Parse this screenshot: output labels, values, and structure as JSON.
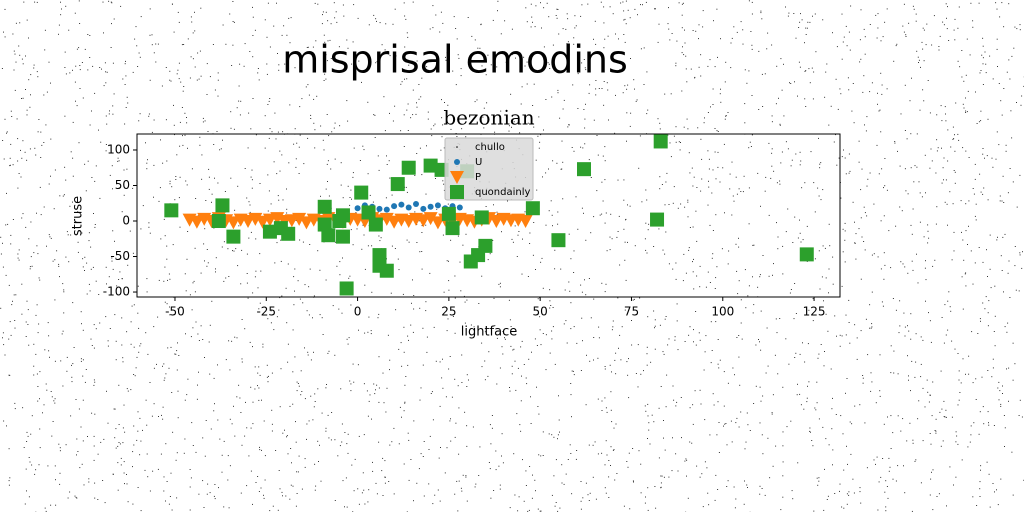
{
  "chart_data": {
    "type": "scatter",
    "title": "misprisal emodins",
    "subtitle": "bezonian",
    "x_label": "lightface",
    "y_label": "struse",
    "xlim": [
      -60.4,
      132.1
    ],
    "ylim": [
      -107,
      122.5
    ],
    "xticks": [
      -50,
      -25,
      0,
      25,
      50,
      75,
      100,
      125
    ],
    "yticks": [
      -100,
      -50,
      0,
      50,
      100
    ],
    "legend": "upper center",
    "series": [
      {
        "name": "chullo",
        "color": "#000000",
        "marker": "point",
        "x": [
          -20,
          -5,
          10,
          25,
          40
        ],
        "values": [
          5,
          10,
          -3,
          8,
          2
        ]
      },
      {
        "name": "U",
        "color": "#1f77b4",
        "marker": "circle",
        "x": [
          0,
          2,
          4,
          6,
          8,
          10,
          12,
          14,
          16,
          18,
          20,
          22,
          24,
          26,
          28
        ],
        "values": [
          18,
          22,
          20,
          17,
          16,
          21,
          23,
          19,
          24,
          17,
          20,
          22,
          18,
          21,
          19
        ]
      },
      {
        "name": "P",
        "color": "#ff7f0e",
        "marker": "triangle-down",
        "x": [
          -46,
          -44,
          -42,
          -40,
          -38,
          -36,
          -34,
          -32,
          -30,
          -28,
          -26,
          -24,
          -22,
          -20,
          -18,
          -16,
          -14,
          -12,
          -10,
          -8,
          -6,
          -4,
          -2,
          0,
          2,
          4,
          6,
          8,
          10,
          12,
          14,
          16,
          18,
          20,
          22,
          24,
          26,
          28,
          30,
          32,
          34,
          36,
          38,
          40,
          42,
          44,
          46
        ],
        "values": [
          2,
          -1,
          3,
          0,
          4,
          1,
          -2,
          2,
          0,
          3,
          -1,
          2,
          4,
          0,
          1,
          3,
          -2,
          2,
          0,
          4,
          1,
          -1,
          3,
          2,
          0,
          4,
          1,
          3,
          -1,
          2,
          0,
          3,
          1,
          4,
          -2,
          2,
          0,
          3,
          1,
          -1,
          2,
          4,
          0,
          3,
          1,
          2,
          0
        ]
      },
      {
        "name": "quondainly",
        "color": "#2ca02c",
        "marker": "square",
        "x": [
          -51,
          -37,
          -38,
          -34,
          -24,
          -21,
          -19,
          -9,
          -9,
          -8,
          -4,
          -5,
          -4,
          -3,
          1,
          3,
          5,
          6,
          6,
          8,
          11,
          14,
          20,
          23,
          25,
          26,
          30,
          31,
          33,
          34,
          35,
          48,
          55,
          62,
          82,
          83,
          123
        ],
        "values": [
          15,
          22,
          0,
          -22,
          -15,
          -10,
          -18,
          20,
          -5,
          -20,
          -22,
          0,
          8,
          -95,
          40,
          12,
          -5,
          -48,
          -63,
          -70,
          52,
          75,
          78,
          72,
          10,
          -10,
          70,
          -57,
          -48,
          5,
          -35,
          18,
          -27,
          73,
          2,
          112,
          -47
        ]
      }
    ]
  }
}
